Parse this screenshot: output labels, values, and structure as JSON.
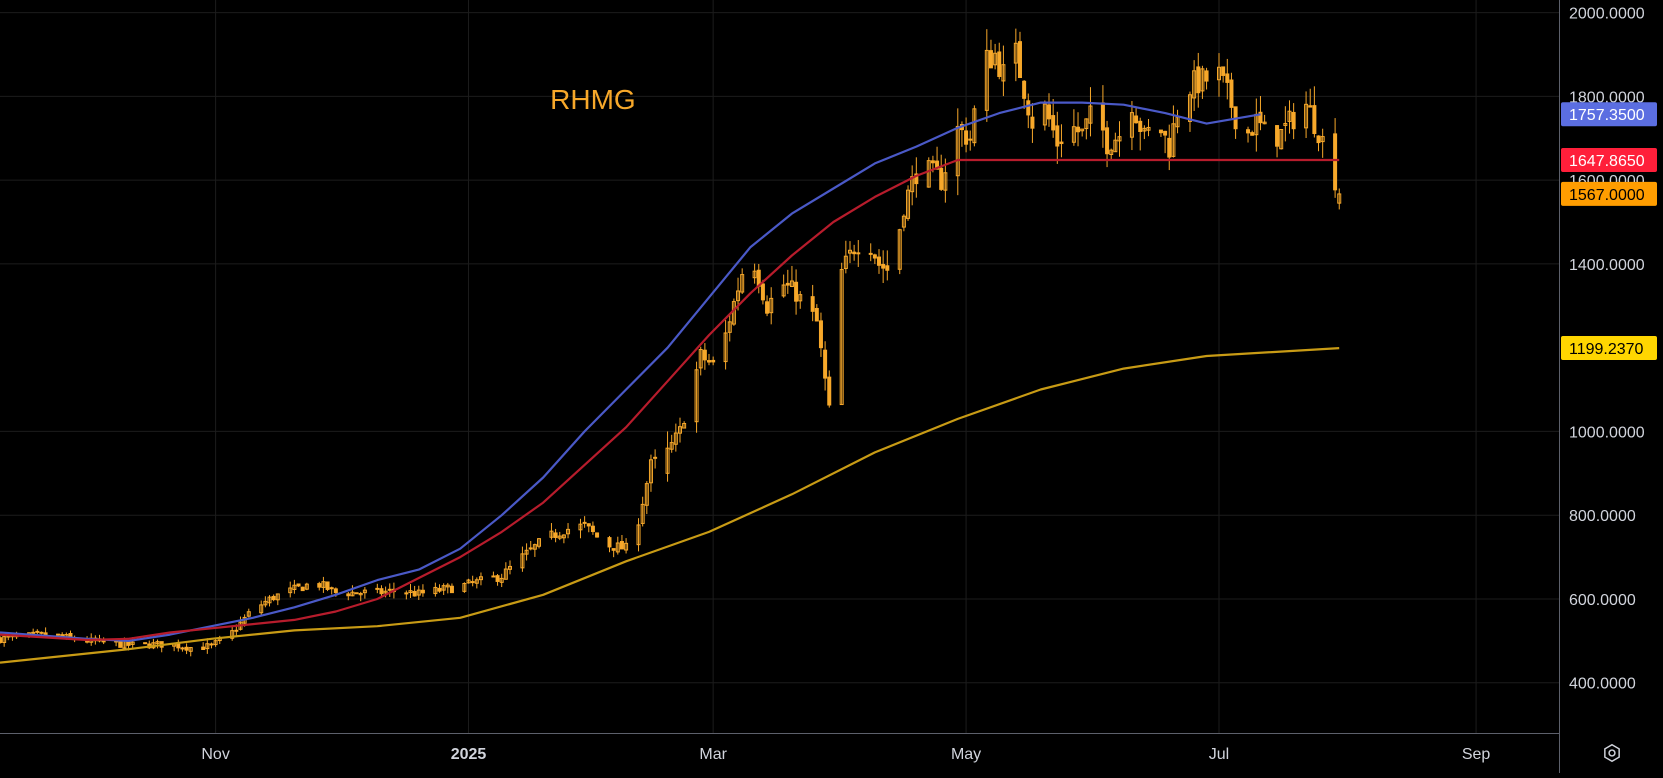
{
  "chart_data": {
    "type": "candlestick",
    "symbol": "RHMG",
    "ylim": [
      280,
      2030
    ],
    "x_range_days": [
      -21,
      355
    ],
    "x_ticks": [
      {
        "label": "Nov",
        "day": 31,
        "bold": false
      },
      {
        "label": "2025",
        "day": 92,
        "bold": true
      },
      {
        "label": "Mar",
        "day": 151,
        "bold": false
      },
      {
        "label": "May",
        "day": 212,
        "bold": false
      },
      {
        "label": "Jul",
        "day": 273,
        "bold": false
      },
      {
        "label": "Sep",
        "day": 335,
        "bold": false
      },
      {
        "label": "Nov",
        "day": 396,
        "bold": false
      }
    ],
    "y_ticks": [
      {
        "value": 2000,
        "label": "2000.0000"
      },
      {
        "value": 1800,
        "label": "1800.0000"
      },
      {
        "value": 1600,
        "label": "1600.0000"
      },
      {
        "value": 1400,
        "label": "1400.0000"
      },
      {
        "value": 1000,
        "label": "1000.0000"
      },
      {
        "value": 800,
        "label": "800.0000"
      },
      {
        "value": 600,
        "label": "600.0000"
      },
      {
        "value": 400,
        "label": "400.0000"
      }
    ],
    "price_close_anchors": [
      [
        -21,
        505
      ],
      [
        -10,
        515
      ],
      [
        0,
        500
      ],
      [
        10,
        490
      ],
      [
        20,
        492
      ],
      [
        25,
        484
      ],
      [
        30,
        487
      ],
      [
        35,
        520
      ],
      [
        40,
        575
      ],
      [
        45,
        605
      ],
      [
        55,
        640
      ],
      [
        60,
        615
      ],
      [
        70,
        615
      ],
      [
        75,
        620
      ],
      [
        80,
        612
      ],
      [
        90,
        630
      ],
      [
        100,
        655
      ],
      [
        105,
        700
      ],
      [
        110,
        740
      ],
      [
        115,
        765
      ],
      [
        120,
        775
      ],
      [
        125,
        730
      ],
      [
        130,
        720
      ],
      [
        133,
        790
      ],
      [
        136,
        920
      ],
      [
        140,
        950
      ],
      [
        143,
        1000
      ],
      [
        148,
        1180
      ],
      [
        152,
        1150
      ],
      [
        155,
        1270
      ],
      [
        158,
        1380
      ],
      [
        161,
        1400
      ],
      [
        164,
        1300
      ],
      [
        168,
        1350
      ],
      [
        171,
        1330
      ],
      [
        176,
        1260
      ],
      [
        179,
        1050
      ],
      [
        182,
        1380
      ],
      [
        185,
        1440
      ],
      [
        188,
        1470
      ],
      [
        191,
        1400
      ],
      [
        194,
        1380
      ],
      [
        197,
        1540
      ],
      [
        200,
        1620
      ],
      [
        203,
        1620
      ],
      [
        206,
        1600
      ],
      [
        210,
        1720
      ],
      [
        213,
        1700
      ],
      [
        216,
        1880
      ],
      [
        219,
        1900
      ],
      [
        222,
        1830
      ],
      [
        224,
        1900
      ],
      [
        228,
        1740
      ],
      [
        231,
        1770
      ],
      [
        234,
        1690
      ],
      [
        237,
        1730
      ],
      [
        240,
        1710
      ],
      [
        243,
        1770
      ],
      [
        246,
        1690
      ],
      [
        249,
        1710
      ],
      [
        252,
        1790
      ],
      [
        255,
        1700
      ],
      [
        258,
        1740
      ],
      [
        261,
        1680
      ],
      [
        264,
        1810
      ],
      [
        267,
        1830
      ],
      [
        270,
        1840
      ],
      [
        273,
        1850
      ],
      [
        276,
        1780
      ],
      [
        279,
        1700
      ],
      [
        282,
        1740
      ],
      [
        285,
        1700
      ],
      [
        288,
        1710
      ],
      [
        291,
        1750
      ],
      [
        294,
        1780
      ],
      [
        297,
        1720
      ],
      [
        300,
        1640
      ],
      [
        302,
        1567
      ]
    ],
    "price_spikes": [
      {
        "day": 180,
        "low": 935,
        "high": 1360,
        "open": 1250,
        "close": 1080
      },
      {
        "day": 140,
        "low": 880,
        "high": 1000,
        "open": 900,
        "close": 960
      },
      {
        "day": 216,
        "low": 1660,
        "high": 1930,
        "open": 1700,
        "close": 1880
      },
      {
        "day": 300,
        "low": 1530,
        "high": 1720,
        "open": 1700,
        "close": 1560
      }
    ],
    "series": [
      {
        "color": "#4a59c7",
        "points": [
          [
            -21,
            520
          ],
          [
            0,
            505
          ],
          [
            10,
            500
          ],
          [
            20,
            515
          ],
          [
            30,
            535
          ],
          [
            40,
            555
          ],
          [
            50,
            580
          ],
          [
            60,
            610
          ],
          [
            70,
            645
          ],
          [
            80,
            670
          ],
          [
            90,
            720
          ],
          [
            100,
            800
          ],
          [
            110,
            890
          ],
          [
            120,
            1000
          ],
          [
            130,
            1100
          ],
          [
            140,
            1200
          ],
          [
            150,
            1320
          ],
          [
            160,
            1440
          ],
          [
            170,
            1520
          ],
          [
            180,
            1580
          ],
          [
            190,
            1640
          ],
          [
            200,
            1680
          ],
          [
            210,
            1725
          ],
          [
            220,
            1760
          ],
          [
            230,
            1785
          ],
          [
            240,
            1785
          ],
          [
            250,
            1780
          ],
          [
            260,
            1760
          ],
          [
            270,
            1735
          ],
          [
            283,
            1757
          ]
        ]
      },
      {
        "color": "#b71c2c",
        "points": [
          [
            -21,
            515
          ],
          [
            0,
            502
          ],
          [
            10,
            505
          ],
          [
            20,
            520
          ],
          [
            30,
            530
          ],
          [
            40,
            540
          ],
          [
            50,
            550
          ],
          [
            60,
            570
          ],
          [
            70,
            600
          ],
          [
            80,
            650
          ],
          [
            90,
            700
          ],
          [
            100,
            760
          ],
          [
            110,
            830
          ],
          [
            120,
            920
          ],
          [
            130,
            1010
          ],
          [
            140,
            1120
          ],
          [
            150,
            1230
          ],
          [
            160,
            1330
          ],
          [
            170,
            1420
          ],
          [
            180,
            1500
          ],
          [
            190,
            1560
          ],
          [
            200,
            1610
          ],
          [
            210,
            1648
          ],
          [
            302,
            1648
          ]
        ]
      },
      {
        "color": "#c89b15",
        "points": [
          [
            -21,
            448
          ],
          [
            10,
            480
          ],
          [
            30,
            505
          ],
          [
            50,
            525
          ],
          [
            70,
            535
          ],
          [
            90,
            555
          ],
          [
            110,
            610
          ],
          [
            130,
            690
          ],
          [
            150,
            760
          ],
          [
            170,
            850
          ],
          [
            190,
            950
          ],
          [
            210,
            1030
          ],
          [
            230,
            1100
          ],
          [
            250,
            1150
          ],
          [
            270,
            1180
          ],
          [
            302,
            1199
          ]
        ]
      }
    ],
    "price_labels": [
      {
        "text": "1757.3500",
        "value": 1757.35,
        "bg": "#5b6ee1",
        "fg": "#ffffff"
      },
      {
        "text": "1647.8650",
        "value": 1647.865,
        "bg": "#ff1f3a",
        "fg": "#ffffff"
      },
      {
        "text": "1567.0000",
        "value": 1567.0,
        "bg": "#ff9d00",
        "fg": "#000000"
      },
      {
        "text": "1199.2370",
        "value": 1199.237,
        "bg": "#ffd600",
        "fg": "#000000"
      }
    ],
    "candle_color": "#f7a82a",
    "grid": true,
    "background": "#000000"
  },
  "ui": {
    "settings_icon": "gear-icon"
  }
}
